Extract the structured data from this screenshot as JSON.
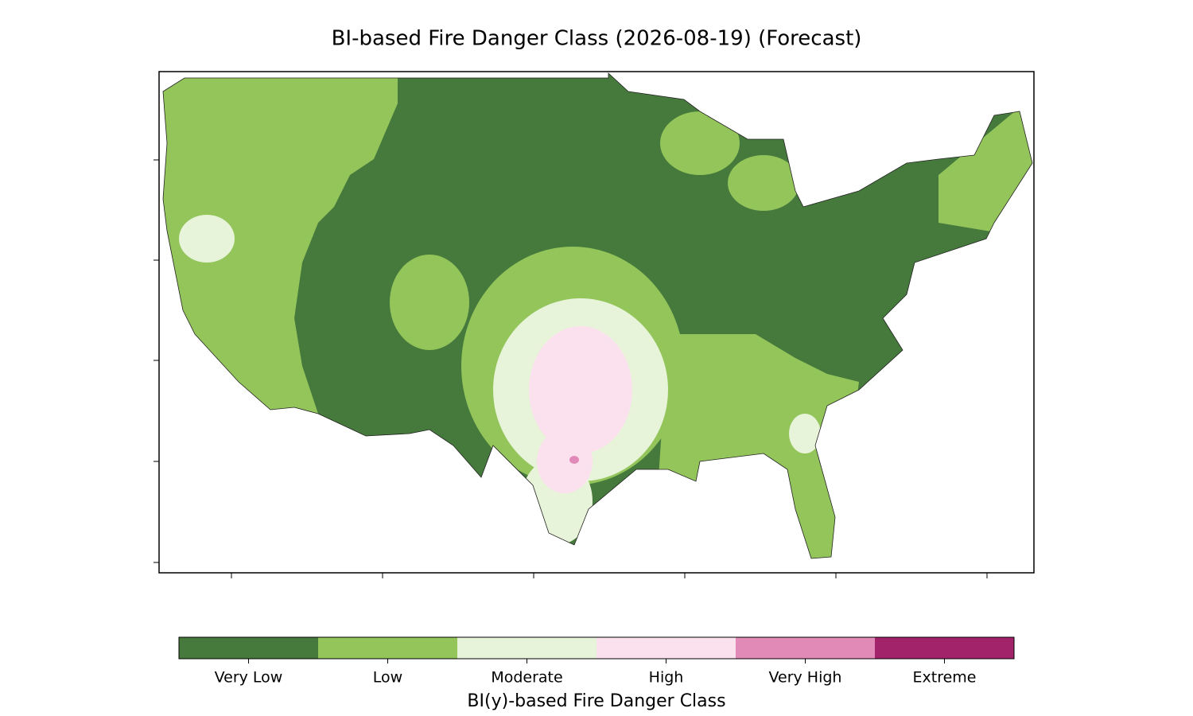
{
  "title": "BI-based Fire Danger Class (2026-08-19) (Forecast)",
  "legend": {
    "title": "BI(y)-based Fire Danger Class",
    "classes": [
      {
        "label": "Very Low",
        "color": "#467a3c"
      },
      {
        "label": "Low",
        "color": "#93c55b"
      },
      {
        "label": "Moderate",
        "color": "#e7f4d9"
      },
      {
        "label": "High",
        "color": "#fbe1ee"
      },
      {
        "label": "Very High",
        "color": "#e18ab8"
      },
      {
        "label": "Extreme",
        "color": "#a3236b"
      }
    ]
  }
}
